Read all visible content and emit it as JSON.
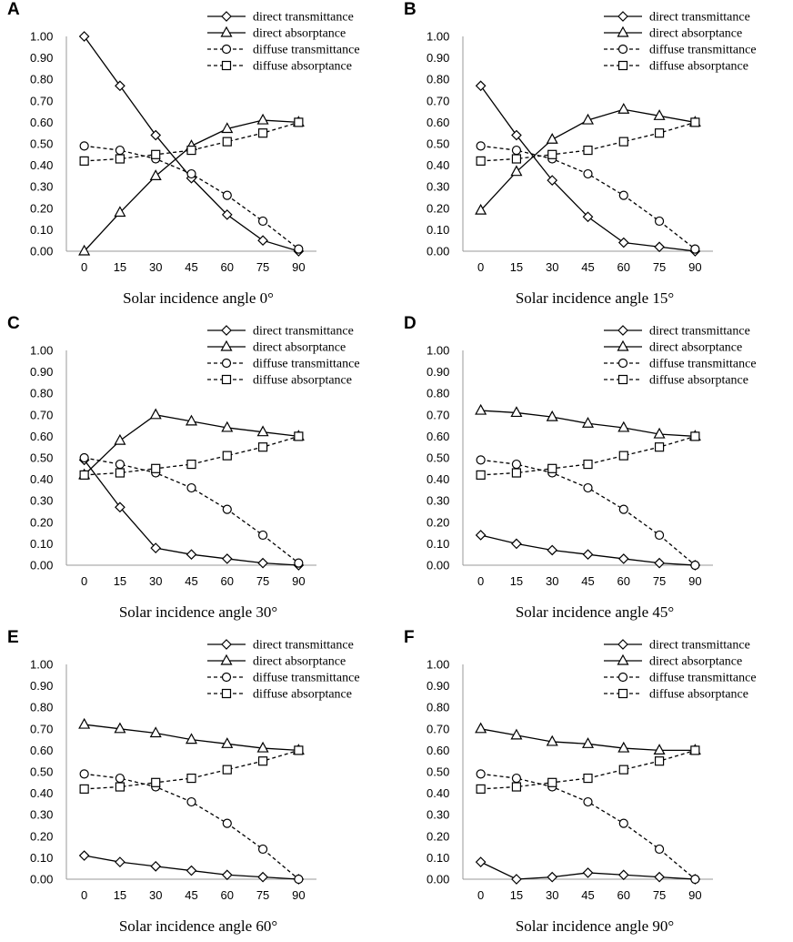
{
  "chart_data": [
    {
      "panel": "A",
      "type": "line",
      "title": "Solar incidence angle 0°",
      "x": [
        0,
        15,
        30,
        45,
        60,
        75,
        90
      ],
      "xlabel": "Solar incidence angle 0°",
      "ylabel": "",
      "ylim": [
        0,
        1
      ],
      "grid": false,
      "legend": "top-right",
      "series": [
        {
          "name": "direct transmittance",
          "marker": "diamond",
          "dash": "solid",
          "values": [
            1.0,
            0.77,
            0.54,
            0.34,
            0.17,
            0.05,
            0.0
          ]
        },
        {
          "name": "direct absorptance",
          "marker": "triangle",
          "dash": "solid",
          "values": [
            0.0,
            0.18,
            0.35,
            0.49,
            0.57,
            0.61,
            0.6
          ]
        },
        {
          "name": "diffuse transmittance",
          "marker": "circle",
          "dash": "dashed",
          "values": [
            0.49,
            0.47,
            0.43,
            0.36,
            0.26,
            0.14,
            0.01
          ]
        },
        {
          "name": "diffuse absorptance",
          "marker": "square",
          "dash": "dashed",
          "values": [
            0.42,
            0.43,
            0.45,
            0.47,
            0.51,
            0.55,
            0.6
          ]
        }
      ]
    },
    {
      "panel": "B",
      "type": "line",
      "title": "Solar incidence angle 15°",
      "x": [
        0,
        15,
        30,
        45,
        60,
        75,
        90
      ],
      "xlabel": "Solar incidence angle 15°",
      "ylabel": "",
      "ylim": [
        0,
        1
      ],
      "grid": false,
      "legend": "top-right",
      "series": [
        {
          "name": "direct transmittance",
          "marker": "diamond",
          "dash": "solid",
          "values": [
            0.77,
            0.54,
            0.33,
            0.16,
            0.04,
            0.02,
            0.0
          ]
        },
        {
          "name": "direct absorptance",
          "marker": "triangle",
          "dash": "solid",
          "values": [
            0.19,
            0.37,
            0.52,
            0.61,
            0.66,
            0.63,
            0.6
          ]
        },
        {
          "name": "diffuse transmittance",
          "marker": "circle",
          "dash": "dashed",
          "values": [
            0.49,
            0.47,
            0.43,
            0.36,
            0.26,
            0.14,
            0.01
          ]
        },
        {
          "name": "diffuse absorptance",
          "marker": "square",
          "dash": "dashed",
          "values": [
            0.42,
            0.43,
            0.45,
            0.47,
            0.51,
            0.55,
            0.6
          ]
        }
      ]
    },
    {
      "panel": "C",
      "type": "line",
      "title": "Solar incidence angle 30°",
      "x": [
        0,
        15,
        30,
        45,
        60,
        75,
        90
      ],
      "xlabel": "Solar incidence angle 30°",
      "ylabel": "",
      "ylim": [
        0,
        1
      ],
      "grid": false,
      "legend": "top-right",
      "series": [
        {
          "name": "direct transmittance",
          "marker": "diamond",
          "dash": "solid",
          "values": [
            0.49,
            0.27,
            0.08,
            0.05,
            0.03,
            0.01,
            0.0
          ]
        },
        {
          "name": "direct absorptance",
          "marker": "triangle",
          "dash": "solid",
          "values": [
            0.42,
            0.58,
            0.7,
            0.67,
            0.64,
            0.62,
            0.6
          ]
        },
        {
          "name": "diffuse transmittance",
          "marker": "circle",
          "dash": "dashed",
          "values": [
            0.5,
            0.47,
            0.43,
            0.36,
            0.26,
            0.14,
            0.01
          ]
        },
        {
          "name": "diffuse absorptance",
          "marker": "square",
          "dash": "dashed",
          "values": [
            0.42,
            0.43,
            0.45,
            0.47,
            0.51,
            0.55,
            0.6
          ]
        }
      ]
    },
    {
      "panel": "D",
      "type": "line",
      "title": "Solar incidence angle 45°",
      "x": [
        0,
        15,
        30,
        45,
        60,
        75,
        90
      ],
      "xlabel": "Solar incidence angle 45°",
      "ylabel": "",
      "ylim": [
        0,
        1
      ],
      "grid": false,
      "legend": "top-right",
      "series": [
        {
          "name": "direct transmittance",
          "marker": "diamond",
          "dash": "solid",
          "values": [
            0.14,
            0.1,
            0.07,
            0.05,
            0.03,
            0.01,
            0.0
          ]
        },
        {
          "name": "direct absorptance",
          "marker": "triangle",
          "dash": "solid",
          "values": [
            0.72,
            0.71,
            0.69,
            0.66,
            0.64,
            0.61,
            0.6
          ]
        },
        {
          "name": "diffuse transmittance",
          "marker": "circle",
          "dash": "dashed",
          "values": [
            0.49,
            0.47,
            0.43,
            0.36,
            0.26,
            0.14,
            0.0
          ]
        },
        {
          "name": "diffuse absorptance",
          "marker": "square",
          "dash": "dashed",
          "values": [
            0.42,
            0.43,
            0.45,
            0.47,
            0.51,
            0.55,
            0.6
          ]
        }
      ]
    },
    {
      "panel": "E",
      "type": "line",
      "title": "Solar incidence angle 60°",
      "x": [
        0,
        15,
        30,
        45,
        60,
        75,
        90
      ],
      "xlabel": "Solar incidence angle 60°",
      "ylabel": "",
      "ylim": [
        0,
        1
      ],
      "grid": false,
      "legend": "top-right",
      "series": [
        {
          "name": "direct transmittance",
          "marker": "diamond",
          "dash": "solid",
          "values": [
            0.11,
            0.08,
            0.06,
            0.04,
            0.02,
            0.01,
            0.0
          ]
        },
        {
          "name": "direct absorptance",
          "marker": "triangle",
          "dash": "solid",
          "values": [
            0.72,
            0.7,
            0.68,
            0.65,
            0.63,
            0.61,
            0.6
          ]
        },
        {
          "name": "diffuse transmittance",
          "marker": "circle",
          "dash": "dashed",
          "values": [
            0.49,
            0.47,
            0.43,
            0.36,
            0.26,
            0.14,
            0.0
          ]
        },
        {
          "name": "diffuse absorptance",
          "marker": "square",
          "dash": "dashed",
          "values": [
            0.42,
            0.43,
            0.45,
            0.47,
            0.51,
            0.55,
            0.6
          ]
        }
      ]
    },
    {
      "panel": "F",
      "type": "line",
      "title": "Solar incidence angle 90°",
      "x": [
        0,
        15,
        30,
        45,
        60,
        75,
        90
      ],
      "xlabel": "Solar incidence angle 90°",
      "ylabel": "",
      "ylim": [
        0,
        1
      ],
      "grid": false,
      "legend": "top-right",
      "series": [
        {
          "name": "direct transmittance",
          "marker": "diamond",
          "dash": "solid",
          "values": [
            0.08,
            0.0,
            0.01,
            0.03,
            0.02,
            0.01,
            0.0
          ]
        },
        {
          "name": "direct absorptance",
          "marker": "triangle",
          "dash": "solid",
          "values": [
            0.7,
            0.67,
            0.64,
            0.63,
            0.61,
            0.6,
            0.6
          ]
        },
        {
          "name": "diffuse transmittance",
          "marker": "circle",
          "dash": "dashed",
          "values": [
            0.49,
            0.47,
            0.43,
            0.36,
            0.26,
            0.14,
            0.0
          ]
        },
        {
          "name": "diffuse absorptance",
          "marker": "square",
          "dash": "dashed",
          "values": [
            0.42,
            0.43,
            0.45,
            0.47,
            0.51,
            0.55,
            0.6
          ]
        }
      ]
    }
  ],
  "y_tick_labels": [
    "0.00",
    "0.10",
    "0.20",
    "0.30",
    "0.40",
    "0.50",
    "0.60",
    "0.70",
    "0.80",
    "0.90",
    "1.00"
  ],
  "x_tick_labels": [
    "0",
    "15",
    "30",
    "45",
    "60",
    "75",
    "90"
  ]
}
